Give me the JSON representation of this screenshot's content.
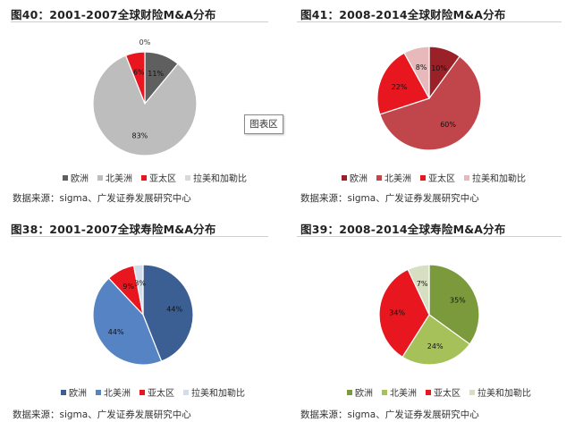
{
  "source_label": "数据来源：sigma、广发证券发展研究中心",
  "tag_label": "图表区",
  "legend_labels": [
    "欧洲",
    "北美洲",
    "亚太区",
    "拉美和加勒比"
  ],
  "chart_data": [
    {
      "type": "pie",
      "title": "图40：2001-2007全球财险M&A分布",
      "categories": [
        "欧洲",
        "北美洲",
        "亚太区",
        "拉美和加勒比"
      ],
      "values": [
        11,
        83,
        6,
        0
      ],
      "labels": [
        "11%",
        "83%",
        "6%",
        "0%"
      ],
      "colors": [
        "#5f5f5f",
        "#bdbdbd",
        "#e8161f",
        "#d9d9d9"
      ],
      "legend": "bottom"
    },
    {
      "type": "pie",
      "title": "图41：2008-2014全球财险M&A分布",
      "categories": [
        "欧洲",
        "北美洲",
        "亚太区",
        "拉美和加勒比"
      ],
      "values": [
        10,
        60,
        22,
        8
      ],
      "labels": [
        "10%",
        "60%",
        "22%",
        "8%"
      ],
      "colors": [
        "#9b2128",
        "#c0464b",
        "#e8161f",
        "#e8b9ba"
      ],
      "legend": "bottom"
    },
    {
      "type": "pie",
      "title": "图38：2001-2007全球寿险M&A分布",
      "categories": [
        "欧洲",
        "北美洲",
        "亚太区",
        "拉美和加勒比"
      ],
      "values": [
        44,
        44,
        9,
        3
      ],
      "labels": [
        "44%",
        "44%",
        "9%",
        "3%"
      ],
      "colors": [
        "#3b5f93",
        "#5683c4",
        "#e8161f",
        "#d3dcea"
      ],
      "legend": "bottom"
    },
    {
      "type": "pie",
      "title": "图39：2008-2014全球寿险M&A分布",
      "categories": [
        "欧洲",
        "北美洲",
        "亚太区",
        "拉美和加勒比"
      ],
      "values": [
        35,
        24,
        34,
        7
      ],
      "labels": [
        "35%",
        "24%",
        "34%",
        "7%"
      ],
      "colors": [
        "#7a9a3b",
        "#a6c15a",
        "#e8161f",
        "#d7dfc2"
      ],
      "legend": "bottom"
    }
  ]
}
